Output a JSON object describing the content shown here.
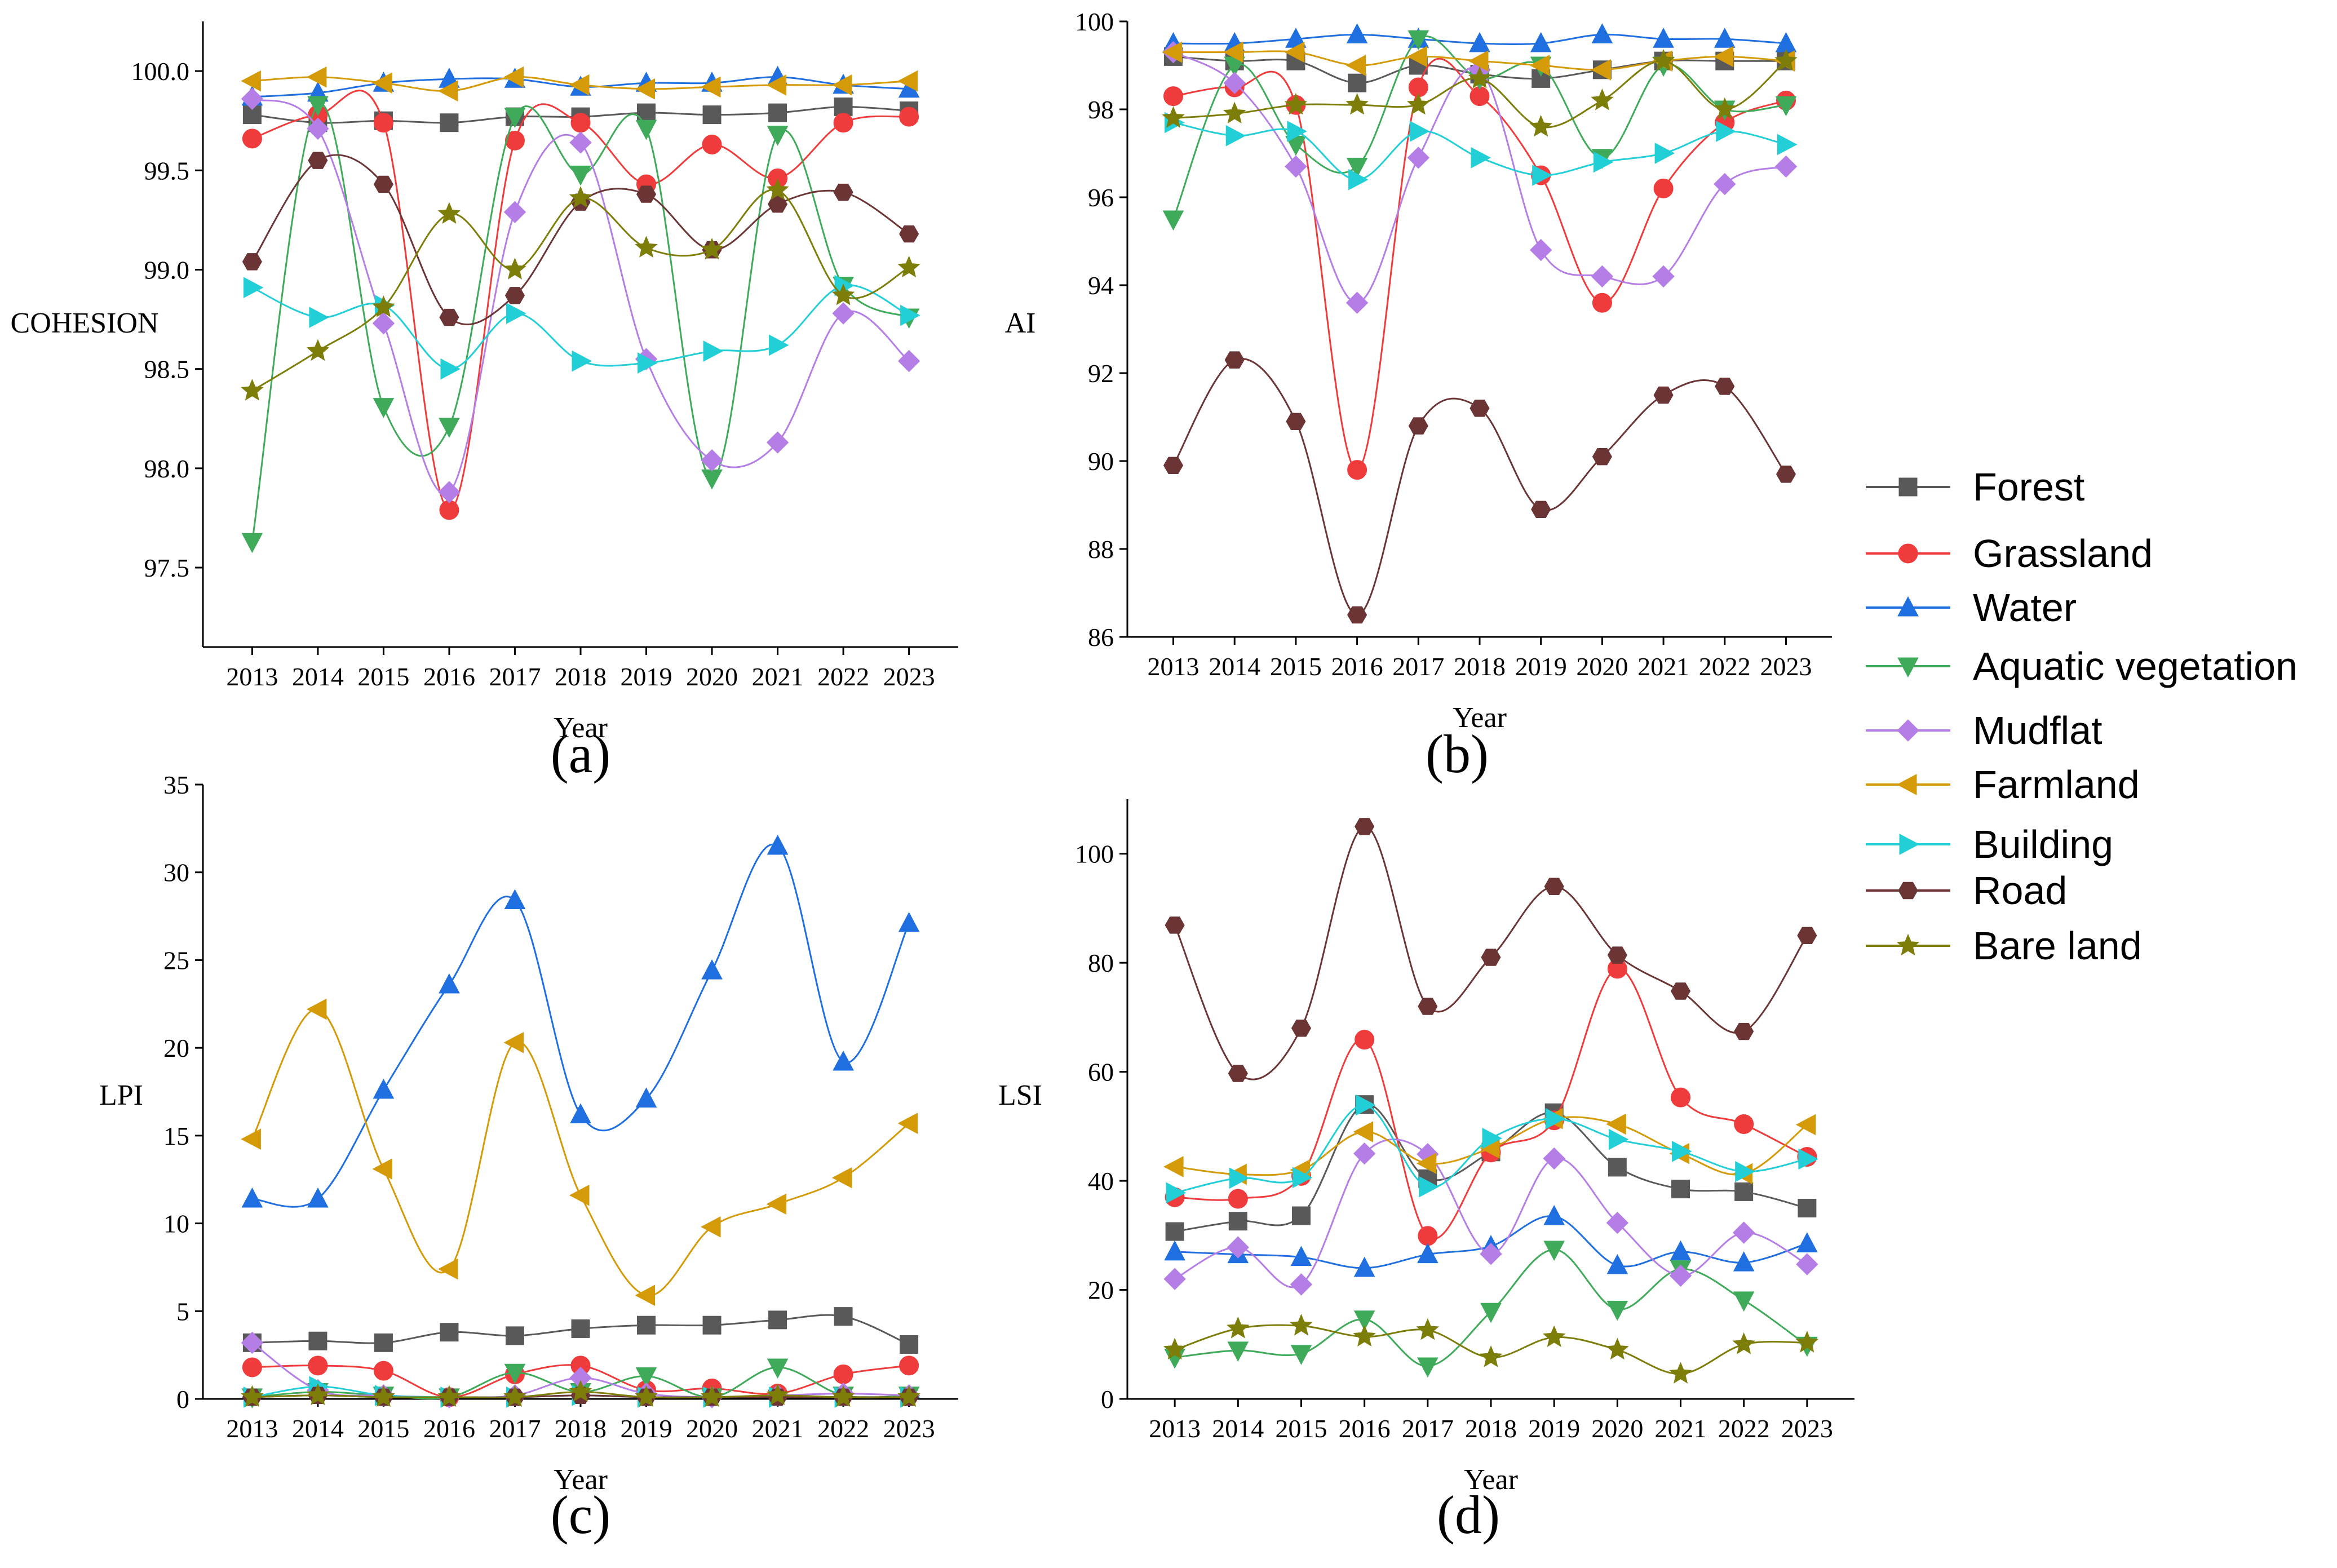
{
  "series_styles": [
    {
      "name": "Forest",
      "color": "#595959",
      "marker": "square"
    },
    {
      "name": "Grassland",
      "color": "#ef3b3b",
      "marker": "circle"
    },
    {
      "name": "Water",
      "color": "#1f6fe0",
      "marker": "triangle-up"
    },
    {
      "name": "Aquatic vegetation",
      "color": "#3faa5a",
      "marker": "triangle-down"
    },
    {
      "name": "Mudflat",
      "color": "#b57ee6",
      "marker": "diamond"
    },
    {
      "name": "Farmland",
      "color": "#d49a08",
      "marker": "triangle-left"
    },
    {
      "name": "Building",
      "color": "#22cfd6",
      "marker": "triangle-right"
    },
    {
      "name": "Road",
      "color": "#6b3535",
      "marker": "hexagon"
    },
    {
      "name": "Bare land",
      "color": "#7d7d0a",
      "marker": "star"
    }
  ],
  "legend": {
    "entries": [
      "Forest",
      "Grassland",
      "Water",
      "Aquatic vegetation",
      "Mudflat",
      "Farmland",
      "Building",
      "Road",
      "Bare land"
    ]
  },
  "chart_data": [
    {
      "panel": "(a)",
      "type": "line",
      "xlabel": "Year",
      "ylabel": "COHESION",
      "categories": [
        "2013",
        "2014",
        "2015",
        "2016",
        "2017",
        "2018",
        "2019",
        "2020",
        "2021",
        "2022",
        "2023"
      ],
      "ylim": [
        97.1,
        100.25
      ],
      "yticks": [
        "97.5",
        "98.0",
        "98.5",
        "99.0",
        "99.5",
        "100.0"
      ],
      "series": [
        {
          "name": "Forest",
          "values": [
            99.78,
            99.74,
            99.75,
            99.74,
            99.77,
            99.77,
            99.79,
            99.78,
            99.79,
            99.82,
            99.8
          ]
        },
        {
          "name": "Grassland",
          "values": [
            99.66,
            99.78,
            99.74,
            97.79,
            99.65,
            99.74,
            99.43,
            99.63,
            99.46,
            99.74,
            99.77
          ]
        },
        {
          "name": "Water",
          "values": [
            99.87,
            99.89,
            99.94,
            99.96,
            99.96,
            99.92,
            99.94,
            99.94,
            99.97,
            99.93,
            99.91
          ]
        },
        {
          "name": "Aquatic vegetation",
          "values": [
            97.63,
            99.83,
            98.31,
            98.21,
            99.77,
            99.48,
            99.71,
            97.95,
            99.68,
            98.92,
            98.76
          ]
        },
        {
          "name": "Mudflat",
          "values": [
            99.86,
            99.71,
            98.73,
            97.88,
            99.29,
            99.64,
            98.55,
            98.04,
            98.13,
            98.78,
            98.54
          ]
        },
        {
          "name": "Farmland",
          "values": [
            99.95,
            99.97,
            99.94,
            99.9,
            99.97,
            99.93,
            99.91,
            99.92,
            99.93,
            99.93,
            99.95
          ]
        },
        {
          "name": "Building",
          "values": [
            98.91,
            98.76,
            98.82,
            98.5,
            98.78,
            98.54,
            98.53,
            98.59,
            98.62,
            98.92,
            98.77
          ]
        },
        {
          "name": "Road",
          "values": [
            99.04,
            99.55,
            99.43,
            98.76,
            98.87,
            99.34,
            99.38,
            99.1,
            99.33,
            99.39,
            99.18
          ]
        },
        {
          "name": "Bare land",
          "values": [
            98.39,
            98.59,
            98.81,
            99.28,
            99.0,
            99.36,
            99.11,
            99.1,
            99.4,
            98.87,
            99.01
          ]
        }
      ]
    },
    {
      "panel": "(b)",
      "type": "line",
      "xlabel": "Year",
      "ylabel": "AI",
      "categories": [
        "2013",
        "2014",
        "2015",
        "2016",
        "2017",
        "2018",
        "2019",
        "2020",
        "2021",
        "2022",
        "2023"
      ],
      "ylim": [
        86,
        100
      ],
      "yticks": [
        "86",
        "88",
        "90",
        "92",
        "94",
        "96",
        "98",
        "100"
      ],
      "series": [
        {
          "name": "Forest",
          "values": [
            99.2,
            99.1,
            99.1,
            98.6,
            99.0,
            98.8,
            98.7,
            98.9,
            99.1,
            99.1,
            99.1
          ]
        },
        {
          "name": "Grassland",
          "values": [
            98.3,
            98.5,
            98.1,
            89.8,
            98.5,
            98.3,
            96.5,
            93.6,
            96.2,
            97.7,
            98.2
          ]
        },
        {
          "name": "Water",
          "values": [
            99.5,
            99.5,
            99.6,
            99.7,
            99.6,
            99.5,
            99.5,
            99.7,
            99.6,
            99.6,
            99.5
          ]
        },
        {
          "name": "Aquatic vegetation",
          "values": [
            95.5,
            99.0,
            97.2,
            96.7,
            99.6,
            98.7,
            99.0,
            96.9,
            99.0,
            98.0,
            98.1
          ]
        },
        {
          "name": "Mudflat",
          "values": [
            99.3,
            98.6,
            96.7,
            93.6,
            96.9,
            98.9,
            94.8,
            94.2,
            94.2,
            96.3,
            96.7
          ]
        },
        {
          "name": "Farmland",
          "values": [
            99.3,
            99.3,
            99.3,
            99.0,
            99.2,
            99.1,
            99.0,
            98.9,
            99.1,
            99.2,
            99.1
          ]
        },
        {
          "name": "Building",
          "values": [
            97.7,
            97.4,
            97.5,
            96.4,
            97.5,
            96.9,
            96.5,
            96.8,
            97.0,
            97.5,
            97.2
          ]
        },
        {
          "name": "Road",
          "values": [
            89.9,
            92.3,
            90.9,
            86.5,
            90.8,
            91.2,
            88.9,
            90.1,
            91.5,
            91.7,
            89.7
          ]
        },
        {
          "name": "Bare land",
          "values": [
            97.8,
            97.9,
            98.1,
            98.1,
            98.1,
            98.7,
            97.6,
            98.2,
            99.1,
            98.0,
            99.1
          ]
        }
      ]
    },
    {
      "panel": "(c)",
      "type": "line",
      "xlabel": "Year",
      "ylabel": "LPI",
      "categories": [
        "2013",
        "2014",
        "2015",
        "2016",
        "2017",
        "2018",
        "2019",
        "2020",
        "2021",
        "2022",
        "2023"
      ],
      "ylim": [
        0,
        35
      ],
      "yticks": [
        "0",
        "5",
        "10",
        "15",
        "20",
        "25",
        "30",
        "35"
      ],
      "series": [
        {
          "name": "Forest",
          "values": [
            3.2,
            3.3,
            3.2,
            3.8,
            3.6,
            4.0,
            4.2,
            4.2,
            4.5,
            4.7,
            3.1
          ]
        },
        {
          "name": "Grassland",
          "values": [
            1.8,
            1.9,
            1.6,
            0.1,
            1.4,
            1.9,
            0.5,
            0.6,
            0.3,
            1.4,
            1.9
          ]
        },
        {
          "name": "Water",
          "values": [
            11.4,
            11.4,
            17.6,
            23.6,
            28.4,
            16.2,
            17.1,
            24.4,
            31.5,
            19.2,
            27.1
          ]
        },
        {
          "name": "Aquatic vegetation",
          "values": [
            0.1,
            0.4,
            0.2,
            0.1,
            1.5,
            0.4,
            1.3,
            0.1,
            1.8,
            0.2,
            0.2
          ]
        },
        {
          "name": "Mudflat",
          "values": [
            3.2,
            0.5,
            0.2,
            0.1,
            0.2,
            1.2,
            0.3,
            0.1,
            0.2,
            0.3,
            0.2
          ]
        },
        {
          "name": "Farmland",
          "values": [
            14.8,
            22.2,
            13.1,
            7.4,
            20.3,
            11.6,
            5.9,
            9.8,
            11.1,
            12.6,
            15.7
          ]
        },
        {
          "name": "Building",
          "values": [
            0.1,
            0.7,
            0.2,
            0.1,
            0.1,
            0.2,
            0.1,
            0.1,
            0.1,
            0.1,
            0.1
          ]
        },
        {
          "name": "Road",
          "values": [
            0.1,
            0.2,
            0.1,
            0.1,
            0.1,
            0.2,
            0.1,
            0.1,
            0.1,
            0.1,
            0.1
          ]
        },
        {
          "name": "Bare land",
          "values": [
            0.1,
            0.2,
            0.1,
            0.1,
            0.1,
            0.4,
            0.1,
            0.1,
            0.2,
            0.1,
            0.1
          ]
        }
      ]
    },
    {
      "panel": "(d)",
      "type": "line",
      "xlabel": "Year",
      "ylabel": "LSI",
      "categories": [
        "2013",
        "2014",
        "2015",
        "2016",
        "2017",
        "2018",
        "2019",
        "2020",
        "2021",
        "2022",
        "2023"
      ],
      "ylim": [
        0,
        110
      ],
      "yticks": [
        "0",
        "20",
        "40",
        "60",
        "80",
        "100"
      ],
      "series": [
        {
          "name": "Forest",
          "values": [
            30.7,
            32.6,
            33.6,
            54.0,
            40.4,
            45.3,
            52.5,
            42.5,
            38.5,
            38.0,
            35.0
          ]
        },
        {
          "name": "Grassland",
          "values": [
            37.0,
            36.7,
            40.9,
            65.9,
            29.9,
            45.2,
            51.1,
            78.9,
            55.3,
            50.4,
            44.4
          ]
        },
        {
          "name": "Water",
          "values": [
            27.0,
            26.5,
            26.0,
            24.0,
            26.5,
            28.0,
            33.5,
            24.5,
            27.0,
            25.0,
            28.5
          ]
        },
        {
          "name": "Aquatic vegetation",
          "values": [
            7.6,
            8.9,
            8.3,
            14.6,
            6.0,
            16.0,
            27.4,
            16.4,
            23.8,
            18.1,
            9.8
          ]
        },
        {
          "name": "Mudflat",
          "values": [
            22.0,
            27.8,
            21.0,
            45.0,
            44.9,
            26.6,
            44.1,
            32.3,
            22.6,
            30.5,
            24.7
          ]
        },
        {
          "name": "Farmland",
          "values": [
            42.6,
            41.2,
            42.0,
            49.0,
            43.2,
            46.0,
            51.4,
            50.4,
            45.0,
            41.3,
            50.3
          ]
        },
        {
          "name": "Building",
          "values": [
            37.8,
            40.5,
            40.6,
            53.9,
            38.9,
            47.8,
            51.4,
            47.6,
            45.4,
            41.7,
            44.0
          ]
        },
        {
          "name": "Road",
          "values": [
            86.9,
            59.7,
            68.0,
            105.0,
            72.0,
            81.0,
            94.0,
            81.4,
            74.8,
            67.4,
            85.0
          ]
        },
        {
          "name": "Bare land",
          "values": [
            9.0,
            12.9,
            13.4,
            11.4,
            12.6,
            7.6,
            11.3,
            9.0,
            4.6,
            10.0,
            10.3
          ]
        }
      ]
    }
  ]
}
